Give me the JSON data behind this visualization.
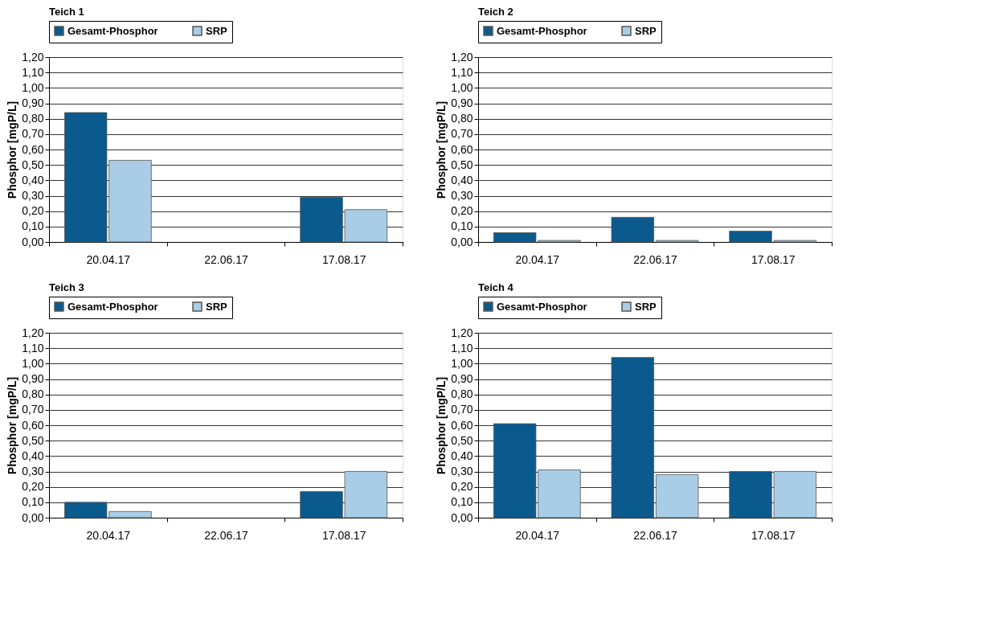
{
  "chart_data": [
    {
      "type": "bar",
      "title": "Teich 1",
      "categories": [
        "20.04.17",
        "22.06.17",
        "17.08.17"
      ],
      "ylabel": "Phosphor [mgP/L]",
      "ylim": [
        0,
        1.2
      ],
      "yticks": [
        {
          "value": 0,
          "label": "0,00"
        },
        {
          "value": 0.1,
          "label": "0,10"
        },
        {
          "value": 0.2,
          "label": "0,20"
        },
        {
          "value": 0.3,
          "label": "0,30"
        },
        {
          "value": 0.4,
          "label": "0,40"
        },
        {
          "value": 0.5,
          "label": "0,50"
        },
        {
          "value": 0.6,
          "label": "0,60"
        },
        {
          "value": 0.7,
          "label": "0,70"
        },
        {
          "value": 0.8,
          "label": "0,80"
        },
        {
          "value": 0.9,
          "label": "0,90"
        },
        {
          "value": 1.0,
          "label": "1,00"
        },
        {
          "value": 1.1,
          "label": "1,10"
        },
        {
          "value": 1.2,
          "label": "1,20"
        }
      ],
      "grid": "y",
      "legend": "top",
      "series": [
        {
          "name": "Gesamt-Phosphor",
          "color": "#0b5a8e",
          "values": [
            0.84,
            null,
            0.29
          ]
        },
        {
          "name": "SRP",
          "color": "#a9cde6",
          "values": [
            0.53,
            null,
            0.21
          ]
        }
      ]
    },
    {
      "type": "bar",
      "title": "Teich 2",
      "categories": [
        "20.04.17",
        "22.06.17",
        "17.08.17"
      ],
      "ylabel": "Phosphor [mgP/L]",
      "ylim": [
        0,
        1.2
      ],
      "yticks": [
        {
          "value": 0,
          "label": "0,00"
        },
        {
          "value": 0.1,
          "label": "0,10"
        },
        {
          "value": 0.2,
          "label": "0,20"
        },
        {
          "value": 0.3,
          "label": "0,30"
        },
        {
          "value": 0.4,
          "label": "0,40"
        },
        {
          "value": 0.5,
          "label": "0,50"
        },
        {
          "value": 0.6,
          "label": "0,60"
        },
        {
          "value": 0.7,
          "label": "0,70"
        },
        {
          "value": 0.8,
          "label": "0,80"
        },
        {
          "value": 0.9,
          "label": "0,90"
        },
        {
          "value": 1.0,
          "label": "1,00"
        },
        {
          "value": 1.1,
          "label": "1,10"
        },
        {
          "value": 1.2,
          "label": "1,20"
        }
      ],
      "grid": "y",
      "legend": "top",
      "series": [
        {
          "name": "Gesamt-Phosphor",
          "color": "#0b5a8e",
          "values": [
            0.06,
            0.16,
            0.07
          ]
        },
        {
          "name": "SRP",
          "color": "#a9cde6",
          "values": [
            0.01,
            0.01,
            0.01
          ]
        }
      ]
    },
    {
      "type": "bar",
      "title": "Teich 3",
      "categories": [
        "20.04.17",
        "22.06.17",
        "17.08.17"
      ],
      "ylabel": "Phosphor [mgP/L]",
      "ylim": [
        0,
        1.2
      ],
      "yticks": [
        {
          "value": 0,
          "label": "0,00"
        },
        {
          "value": 0.1,
          "label": "0,10"
        },
        {
          "value": 0.2,
          "label": "0,20"
        },
        {
          "value": 0.3,
          "label": "0,30"
        },
        {
          "value": 0.4,
          "label": "0,40"
        },
        {
          "value": 0.5,
          "label": "0,50"
        },
        {
          "value": 0.6,
          "label": "0,60"
        },
        {
          "value": 0.7,
          "label": "0,70"
        },
        {
          "value": 0.8,
          "label": "0,80"
        },
        {
          "value": 0.9,
          "label": "0,90"
        },
        {
          "value": 1.0,
          "label": "1,00"
        },
        {
          "value": 1.1,
          "label": "1,10"
        },
        {
          "value": 1.2,
          "label": "1,20"
        }
      ],
      "grid": "y",
      "legend": "top",
      "series": [
        {
          "name": "Gesamt-Phosphor",
          "color": "#0b5a8e",
          "values": [
            0.1,
            null,
            0.17
          ]
        },
        {
          "name": "SRP",
          "color": "#a9cde6",
          "values": [
            0.04,
            null,
            0.3
          ]
        }
      ]
    },
    {
      "type": "bar",
      "title": "Teich 4",
      "categories": [
        "20.04.17",
        "22.06.17",
        "17.08.17"
      ],
      "ylabel": "Phosphor [mgP/L]",
      "ylim": [
        0,
        1.2
      ],
      "yticks": [
        {
          "value": 0,
          "label": "0,00"
        },
        {
          "value": 0.1,
          "label": "0,10"
        },
        {
          "value": 0.2,
          "label": "0,20"
        },
        {
          "value": 0.3,
          "label": "0,30"
        },
        {
          "value": 0.4,
          "label": "0,40"
        },
        {
          "value": 0.5,
          "label": "0,50"
        },
        {
          "value": 0.6,
          "label": "0,60"
        },
        {
          "value": 0.7,
          "label": "0,70"
        },
        {
          "value": 0.8,
          "label": "0,80"
        },
        {
          "value": 0.9,
          "label": "0,90"
        },
        {
          "value": 1.0,
          "label": "1,00"
        },
        {
          "value": 1.1,
          "label": "1,10"
        },
        {
          "value": 1.2,
          "label": "1,20"
        }
      ],
      "grid": "y",
      "legend": "top",
      "series": [
        {
          "name": "Gesamt-Phosphor",
          "color": "#0b5a8e",
          "values": [
            0.61,
            1.04,
            0.3
          ]
        },
        {
          "name": "SRP",
          "color": "#a9cde6",
          "values": [
            0.31,
            0.28,
            0.3
          ]
        }
      ]
    }
  ]
}
